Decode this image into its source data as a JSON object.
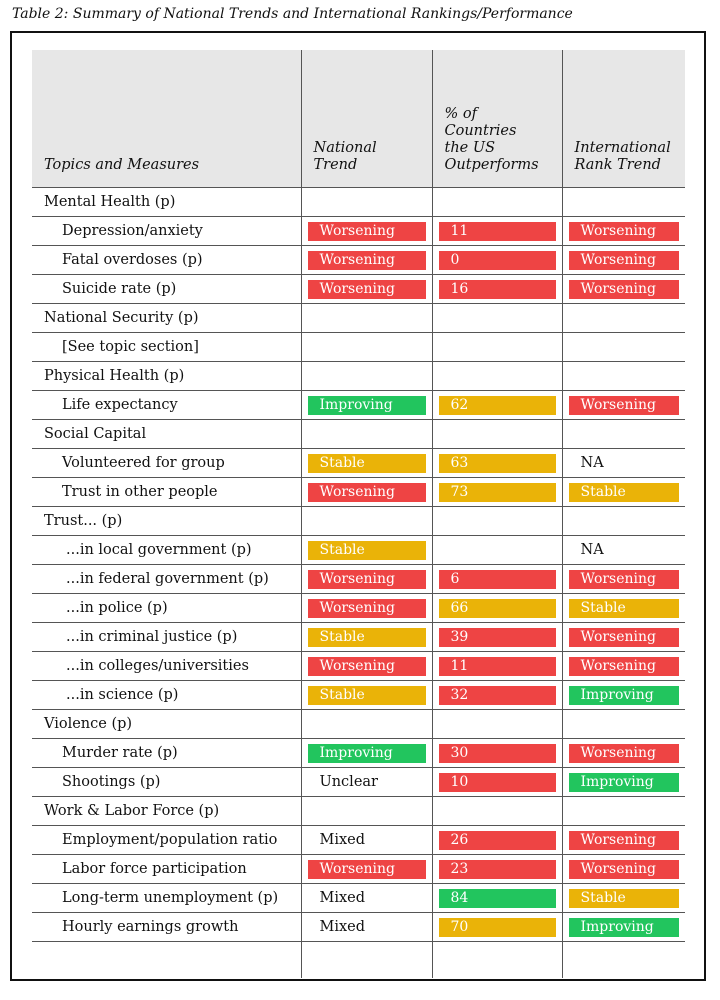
{
  "caption": "Table 2: Summary of National Trends and International Rankings/Performance",
  "headers": [
    "Topics and Measures",
    "National\nTrend",
    "% of\nCountries\nthe US\nOutperforms",
    "International\nRank Trend"
  ],
  "colors": {
    "red": "#ee4444",
    "yellow": "#eab308",
    "green": "#22c55e"
  },
  "rows": [
    {
      "label": "Mental Health  (p)",
      "kind": "topic"
    },
    {
      "label": "Depression/anxiety",
      "kind": "measure",
      "national": "Worsening",
      "nat_color": "red",
      "pct": "11",
      "pct_color": "red",
      "intl": "Worsening",
      "intl_color": "red"
    },
    {
      "label": "Fatal overdoses (p)",
      "kind": "measure",
      "national": "Worsening",
      "nat_color": "red",
      "pct": "0",
      "pct_color": "red",
      "intl": "Worsening",
      "intl_color": "red"
    },
    {
      "label": "Suicide rate (p)",
      "kind": "measure",
      "national": "Worsening",
      "nat_color": "red",
      "pct": "16",
      "pct_color": "red",
      "intl": "Worsening",
      "intl_color": "red"
    },
    {
      "label": "National Security (p)",
      "kind": "topic"
    },
    {
      "label": "[See topic section]",
      "kind": "measure"
    },
    {
      "label": "Physical Health (p)",
      "kind": "topic"
    },
    {
      "label": "Life expectancy",
      "kind": "measure",
      "national": "Improving",
      "nat_color": "green",
      "pct": "62",
      "pct_color": "yellow",
      "intl": "Worsening",
      "intl_color": "red"
    },
    {
      "label": "Social Capital",
      "kind": "topic"
    },
    {
      "label": "Volunteered for group",
      "kind": "measure",
      "national": "Stable",
      "nat_color": "yellow",
      "pct": "63",
      "pct_color": "yellow",
      "intl": "NA",
      "intl_color": ""
    },
    {
      "label": "Trust in other people",
      "kind": "measure",
      "national": "Worsening",
      "nat_color": "red",
      "pct": "73",
      "pct_color": "yellow",
      "intl": "Stable",
      "intl_color": "yellow"
    },
    {
      "label": "Trust... (p)",
      "kind": "topic"
    },
    {
      "label": "...in local government (p)",
      "kind": "measure ind",
      "national": "Stable",
      "nat_color": "yellow",
      "pct": "",
      "pct_color": "",
      "intl": "NA",
      "intl_color": ""
    },
    {
      "label": "...in federal government (p)",
      "kind": "measure ind",
      "national": "Worsening",
      "nat_color": "red",
      "pct": "6",
      "pct_color": "red",
      "intl": "Worsening",
      "intl_color": "red"
    },
    {
      "label": "...in police (p)",
      "kind": "measure ind",
      "national": "Worsening",
      "nat_color": "red",
      "pct": "66",
      "pct_color": "yellow",
      "intl": "Stable",
      "intl_color": "yellow"
    },
    {
      "label": "...in criminal justice (p)",
      "kind": "measure ind",
      "national": "Stable",
      "nat_color": "yellow",
      "pct": "39",
      "pct_color": "red",
      "intl": "Worsening",
      "intl_color": "red"
    },
    {
      "label": "...in colleges/universities",
      "kind": "measure ind",
      "national": "Worsening",
      "nat_color": "red",
      "pct": "11",
      "pct_color": "red",
      "intl": "Worsening",
      "intl_color": "red"
    },
    {
      "label": "...in science (p)",
      "kind": "measure ind",
      "national": "Stable",
      "nat_color": "yellow",
      "pct": "32",
      "pct_color": "red",
      "intl": "Improving",
      "intl_color": "green"
    },
    {
      "label": "Violence (p)",
      "kind": "topic"
    },
    {
      "label": "Murder rate (p)",
      "kind": "measure",
      "national": "Improving",
      "nat_color": "green",
      "pct": "30",
      "pct_color": "red",
      "intl": "Worsening",
      "intl_color": "red"
    },
    {
      "label": "Shootings (p)",
      "kind": "measure",
      "national": "Unclear",
      "nat_color": "",
      "pct": "10",
      "pct_color": "red",
      "intl": "Improving",
      "intl_color": "green"
    },
    {
      "label": "Work & Labor Force (p)",
      "kind": "topic"
    },
    {
      "label": "Employment/population ratio",
      "kind": "measure",
      "national": "Mixed",
      "nat_color": "",
      "pct": "26",
      "pct_color": "red",
      "intl": "Worsening",
      "intl_color": "red"
    },
    {
      "label": "Labor force participation",
      "kind": "measure",
      "national": "Worsening",
      "nat_color": "red",
      "pct": "23",
      "pct_color": "red",
      "intl": "Worsening",
      "intl_color": "red"
    },
    {
      "label": "Long-term unemployment (p)",
      "kind": "measure",
      "national": "Mixed",
      "nat_color": "",
      "pct": "84",
      "pct_color": "green",
      "intl": "Stable",
      "intl_color": "yellow"
    },
    {
      "label": "Hourly earnings growth",
      "kind": "measure",
      "national": "Mixed",
      "nat_color": "",
      "pct": "70",
      "pct_color": "yellow",
      "intl": "Improving",
      "intl_color": "green"
    }
  ]
}
